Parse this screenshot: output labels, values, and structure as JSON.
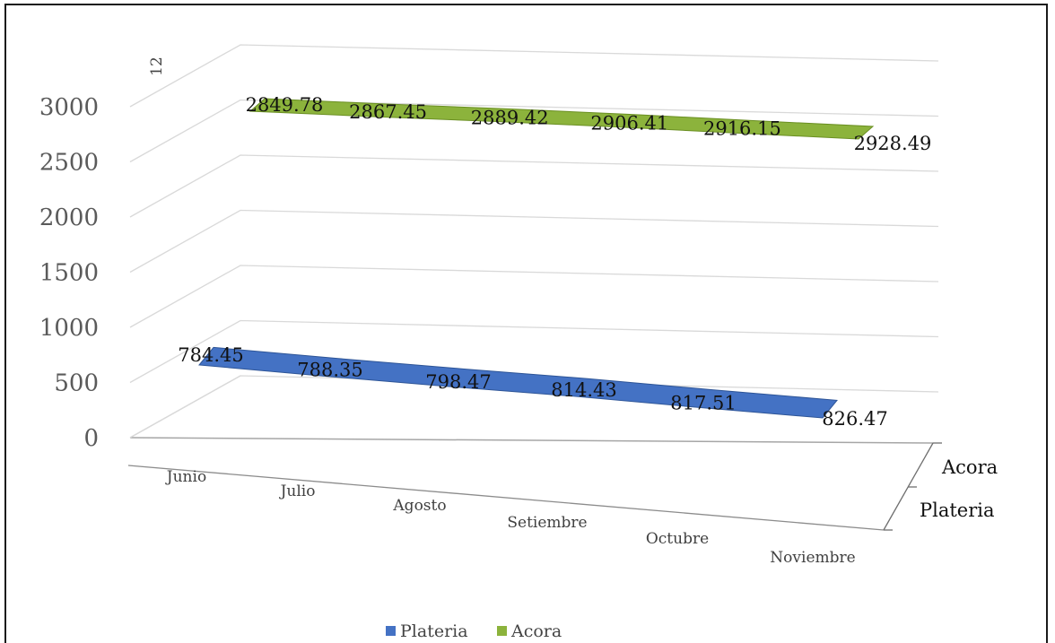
{
  "chart_data": {
    "type": "3d-line",
    "categories": [
      "Junio",
      "Julio",
      "Agosto",
      "Setiembre",
      "Octubre",
      "Noviembre"
    ],
    "series": [
      {
        "name": "Plateria",
        "values": [
          784.45,
          788.35,
          798.47,
          814.43,
          817.51,
          826.47
        ],
        "color": "#4472c4"
      },
      {
        "name": "Acora",
        "values": [
          2849.78,
          2867.45,
          2889.42,
          2906.41,
          2916.15,
          2928.49
        ],
        "color": "#8cb33c"
      }
    ],
    "data_labels": {
      "Plateria": [
        "784.45",
        "788.35",
        "798.47",
        "814.43",
        "817.51",
        "826.47"
      ],
      "Acora": [
        "2849.78",
        "2867.45",
        "2889.42",
        "2906.41",
        "2916.15",
        "2928.49"
      ]
    },
    "yticks": [
      "0",
      "500",
      "1000",
      "1500",
      "2000",
      "2500",
      "3000"
    ],
    "ylim": [
      0,
      3000
    ],
    "depth_labels": [
      "Acora",
      "Plateria"
    ],
    "corner_label": "12",
    "legend": [
      "Plateria",
      "Acora"
    ],
    "legend_position": "bottom",
    "grid": true
  }
}
